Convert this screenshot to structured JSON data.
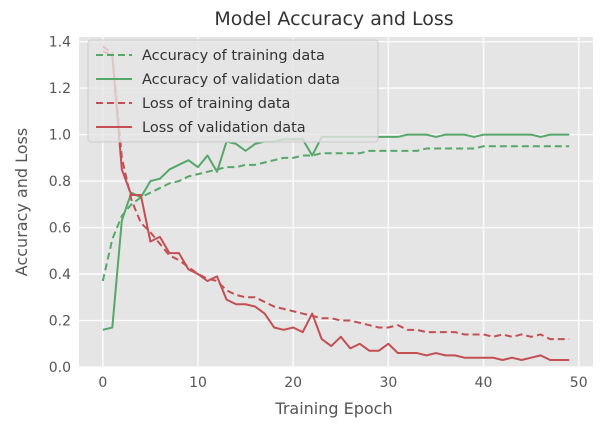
{
  "chart_data": {
    "type": "line",
    "title": "Model Accuracy and Loss",
    "xlabel": "Training Epoch",
    "ylabel": "Accuracy and Loss",
    "xlim": [
      -2.5,
      51.5
    ],
    "ylim": [
      0.0,
      1.42
    ],
    "xticks": [
      0,
      10,
      20,
      30,
      40,
      50
    ],
    "yticks": [
      0.0,
      0.2,
      0.4,
      0.6,
      0.8,
      1.0,
      1.2,
      1.4
    ],
    "xtick_labels": [
      "0",
      "10",
      "20",
      "30",
      "40",
      "50"
    ],
    "ytick_labels": [
      "0.0",
      "0.2",
      "0.4",
      "0.6",
      "0.8",
      "1.0",
      "1.2",
      "1.4"
    ],
    "grid": true,
    "legend_position": "top-left",
    "x": [
      0,
      1,
      2,
      3,
      4,
      5,
      6,
      7,
      8,
      9,
      10,
      11,
      12,
      13,
      14,
      15,
      16,
      17,
      18,
      19,
      20,
      21,
      22,
      23,
      24,
      25,
      26,
      27,
      28,
      29,
      30,
      31,
      32,
      33,
      34,
      35,
      36,
      37,
      38,
      39,
      40,
      41,
      42,
      43,
      44,
      45,
      46,
      47,
      48,
      49
    ],
    "series": [
      {
        "name": "Accuracy of training data",
        "color": "#55a868",
        "style": "dashed",
        "values": [
          0.37,
          0.55,
          0.65,
          0.7,
          0.73,
          0.75,
          0.77,
          0.79,
          0.8,
          0.82,
          0.83,
          0.84,
          0.85,
          0.86,
          0.86,
          0.87,
          0.87,
          0.88,
          0.89,
          0.9,
          0.9,
          0.91,
          0.91,
          0.92,
          0.92,
          0.92,
          0.92,
          0.92,
          0.93,
          0.93,
          0.93,
          0.93,
          0.93,
          0.93,
          0.94,
          0.94,
          0.94,
          0.94,
          0.94,
          0.94,
          0.95,
          0.95,
          0.95,
          0.95,
          0.95,
          0.95,
          0.95,
          0.95,
          0.95,
          0.95
        ]
      },
      {
        "name": "Accuracy of validation data",
        "color": "#55a868",
        "style": "solid",
        "values": [
          0.16,
          0.17,
          0.63,
          0.75,
          0.73,
          0.8,
          0.81,
          0.85,
          0.87,
          0.89,
          0.86,
          0.91,
          0.84,
          0.97,
          0.96,
          0.93,
          0.96,
          0.97,
          0.97,
          0.98,
          0.98,
          0.98,
          0.91,
          0.99,
          0.99,
          0.99,
          0.99,
          0.99,
          0.99,
          0.99,
          0.99,
          0.99,
          1.0,
          1.0,
          1.0,
          0.99,
          1.0,
          1.0,
          1.0,
          0.99,
          1.0,
          1.0,
          1.0,
          1.0,
          1.0,
          1.0,
          0.99,
          1.0,
          1.0,
          1.0
        ]
      },
      {
        "name": "Loss of training data",
        "color": "#c44e52",
        "style": "dashed",
        "values": [
          1.38,
          1.35,
          0.9,
          0.72,
          0.62,
          0.58,
          0.53,
          0.48,
          0.46,
          0.43,
          0.4,
          0.38,
          0.37,
          0.33,
          0.31,
          0.3,
          0.3,
          0.28,
          0.26,
          0.25,
          0.24,
          0.23,
          0.22,
          0.21,
          0.21,
          0.2,
          0.2,
          0.19,
          0.18,
          0.17,
          0.17,
          0.18,
          0.16,
          0.16,
          0.15,
          0.15,
          0.15,
          0.15,
          0.14,
          0.14,
          0.14,
          0.13,
          0.14,
          0.13,
          0.14,
          0.13,
          0.14,
          0.12,
          0.12,
          0.12
        ]
      },
      {
        "name": "Loss of validation data",
        "color": "#c44e52",
        "style": "solid",
        "values": [
          1.36,
          1.34,
          0.85,
          0.74,
          0.74,
          0.54,
          0.56,
          0.49,
          0.49,
          0.42,
          0.4,
          0.37,
          0.39,
          0.29,
          0.27,
          0.27,
          0.26,
          0.23,
          0.17,
          0.16,
          0.17,
          0.15,
          0.23,
          0.12,
          0.09,
          0.13,
          0.08,
          0.1,
          0.07,
          0.07,
          0.1,
          0.06,
          0.06,
          0.06,
          0.05,
          0.06,
          0.05,
          0.05,
          0.04,
          0.04,
          0.04,
          0.04,
          0.03,
          0.04,
          0.03,
          0.04,
          0.05,
          0.03,
          0.03,
          0.03
        ]
      }
    ]
  }
}
